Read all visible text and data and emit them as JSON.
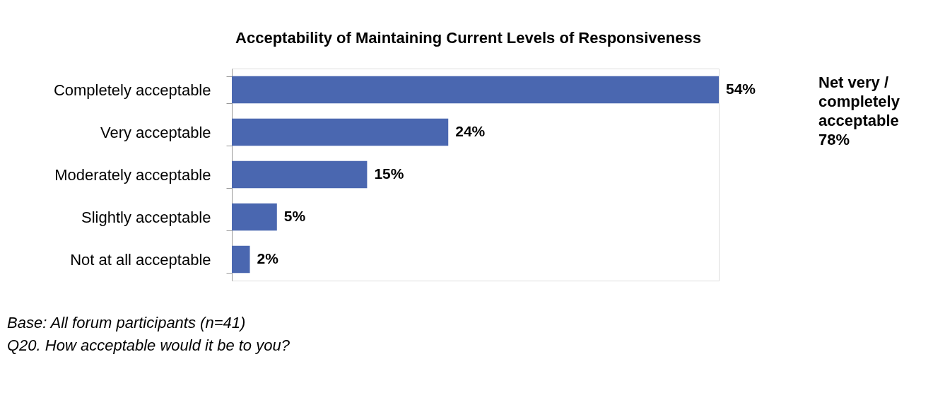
{
  "chart_data": {
    "type": "bar",
    "orientation": "horizontal",
    "title": "Acceptability of Maintaining Current Levels of Responsiveness",
    "categories": [
      "Completely acceptable",
      "Very acceptable",
      "Moderately acceptable",
      "Slightly acceptable",
      "Not at all acceptable"
    ],
    "values": [
      54,
      24,
      15,
      5,
      2
    ],
    "value_labels": [
      "54%",
      "24%",
      "15%",
      "5%",
      "2%"
    ],
    "color": "#4a67b0",
    "annotations": [
      "Net very /\ncompletely\nacceptable\n78%",
      "Base: All forum participants (n=41)",
      "Q20. How acceptable would it be to you?"
    ]
  }
}
